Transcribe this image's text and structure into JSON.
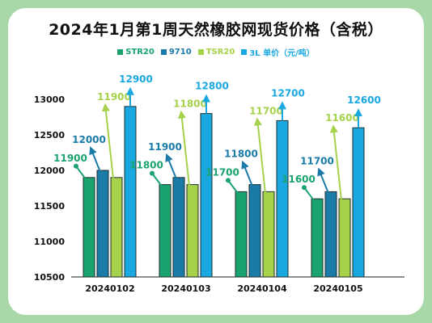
{
  "chart_data": {
    "type": "bar",
    "title": "2024年1月第1周天然橡胶网现货价格（含税）",
    "categories": [
      "20240102",
      "20240103",
      "20240104",
      "20240105"
    ],
    "series": [
      {
        "name": "STR20",
        "color": "#1aa36f",
        "values": [
          11900,
          11800,
          11700,
          11600
        ]
      },
      {
        "name": "9710",
        "color": "#1a7aa8",
        "values": [
          12000,
          11900,
          11800,
          11700
        ]
      },
      {
        "name": "TSR20",
        "color": "#a6d14a",
        "values": [
          11900,
          11800,
          11700,
          11600
        ]
      },
      {
        "name": "3L 单价（元/吨）",
        "color": "#19a8e0",
        "values": [
          12900,
          12800,
          12700,
          12600
        ]
      }
    ],
    "ylim": [
      10500,
      13000
    ],
    "yticks": [
      10500,
      11000,
      11500,
      12000,
      12500,
      13000
    ],
    "xlabel": "",
    "ylabel": "",
    "grid": false,
    "legend": "top"
  }
}
